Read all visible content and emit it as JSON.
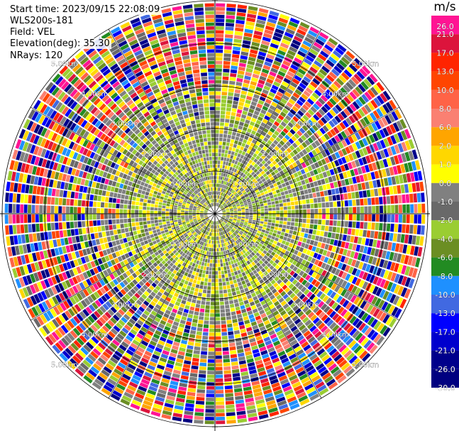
{
  "info": {
    "start_time": "Start time: 2023/09/15 22:08:09",
    "instrument": "WLS200s-181",
    "field": "Field: VEL",
    "elevation": "Elevation(deg): 35.30",
    "nrays": "NRays: 120"
  },
  "colorbar": {
    "unit": "m/s",
    "levels": [
      {
        "label": "26.0",
        "color": "#ff1493"
      },
      {
        "label": "21.0",
        "color": "#dc143c"
      },
      {
        "label": "17.0",
        "color": "#ff2400"
      },
      {
        "label": "13.0",
        "color": "#ff4500"
      },
      {
        "label": "10.0",
        "color": "#ff6347"
      },
      {
        "label": "8.0",
        "color": "#fa8072"
      },
      {
        "label": "6.0",
        "color": "#ffa500"
      },
      {
        "label": "2.0",
        "color": "#ffd700"
      },
      {
        "label": "1.0",
        "color": "#ffff00"
      },
      {
        "label": "0.0",
        "color": "#808080"
      },
      {
        "label": "-1.0",
        "color": "#696969"
      },
      {
        "label": "-2.0",
        "color": "#9acd32"
      },
      {
        "label": "-4.0",
        "color": "#6b8e23"
      },
      {
        "label": "-6.0",
        "color": "#228b22"
      },
      {
        "label": "-8.0",
        "color": "#1e90ff"
      },
      {
        "label": "-10.0",
        "color": "#4169e1"
      },
      {
        "label": "-13.0",
        "color": "#0000ff"
      },
      {
        "label": "-17.0",
        "color": "#0000cd"
      },
      {
        "label": "-21.0",
        "color": "#00008b"
      },
      {
        "label": "-26.0",
        "color": "#000080"
      },
      {
        "label": "-30.0",
        "color": ""
      }
    ]
  },
  "chart_data": {
    "type": "heatmap",
    "title": "",
    "field": "VEL",
    "units": "m/s",
    "n_rays": 120,
    "max_range_km": 5.0,
    "range_rings": [
      {
        "range_km": 1.0,
        "label": "1.00km"
      },
      {
        "range_km": 2.0,
        "label": "2.00km"
      },
      {
        "range_km": 3.0,
        "label": "3.00km"
      },
      {
        "range_km": 4.0,
        "label": "4.00km"
      },
      {
        "range_km": 5.0,
        "label": "5.00km"
      }
    ],
    "spokes_deg": [
      0,
      30,
      60,
      90,
      120,
      150,
      180,
      210,
      240,
      270,
      300,
      330
    ],
    "colormap_range": [
      -30.0,
      26.0
    ]
  }
}
